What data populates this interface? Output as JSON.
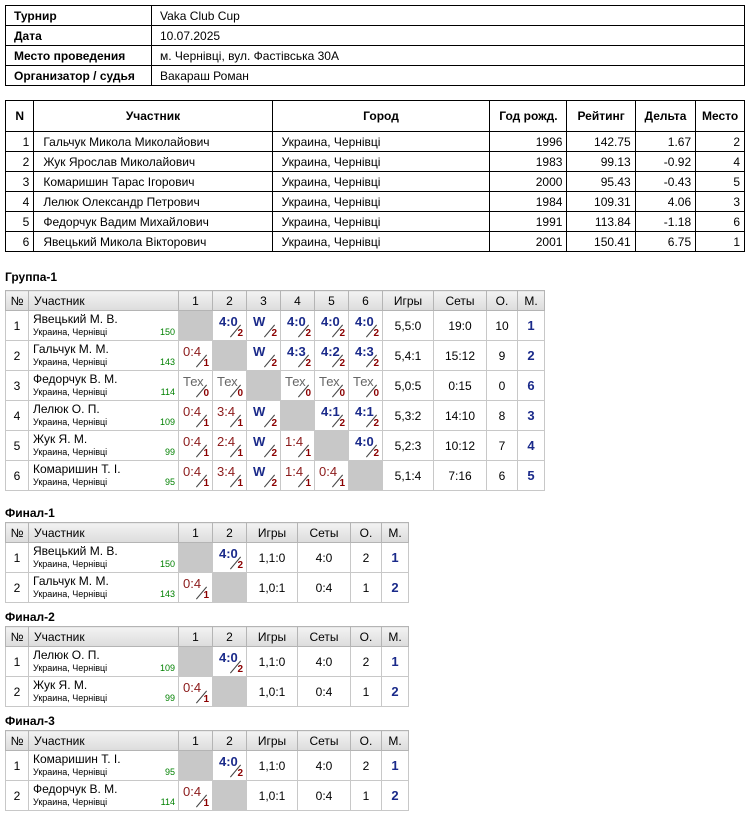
{
  "info": [
    {
      "k": "Турнир",
      "v": "Vaka Club Cup"
    },
    {
      "k": "Дата",
      "v": "10.07.2025"
    },
    {
      "k": "Место проведения",
      "v": "м. Чернівці, вул. Фастівська 30А"
    },
    {
      "k": "Организатор / судья",
      "v": "Вакараш Роман"
    }
  ],
  "participants": {
    "headers": [
      "N",
      "Участник",
      "Город",
      "Год рожд.",
      "Рейтинг",
      "Дельта",
      "Место"
    ],
    "rows": [
      [
        "1",
        "Гальчук Микола Миколайович",
        "Украина, Чернівці",
        "1996",
        "142.75",
        "1.67",
        "2"
      ],
      [
        "2",
        "Жук Ярослав Миколайович",
        "Украина, Чернівці",
        "1983",
        "99.13",
        "-0.92",
        "4"
      ],
      [
        "3",
        "Комаришин Тарас Ігорович",
        "Украина, Чернівці",
        "2000",
        "95.43",
        "-0.43",
        "5"
      ],
      [
        "4",
        "Лелюк Олександр Петрович",
        "Украина, Чернівці",
        "1984",
        "109.31",
        "4.06",
        "3"
      ],
      [
        "5",
        "Федорчук Вадим Михайлович",
        "Украина, Чернівці",
        "1991",
        "113.84",
        "-1.18",
        "6"
      ],
      [
        "6",
        "Явецький Микола Вікторович",
        "Украина, Чернівці",
        "2001",
        "150.41",
        "6.75",
        "1"
      ]
    ]
  },
  "groups": [
    {
      "title": "Группа-1",
      "headers": {
        "no": "№",
        "name": "Участник",
        "cols": [
          "1",
          "2",
          "3",
          "4",
          "5",
          "6"
        ],
        "games": "Игры",
        "sets": "Сеты",
        "o": "О.",
        "m": "М."
      },
      "rows": [
        {
          "no": "1",
          "name": "Явецький М. В.",
          "city": "Украина, Чернівці",
          "rating": "150",
          "res": [
            null,
            {
              "s": "4:0",
              "p": "2",
              "t": "win"
            },
            {
              "s": "W",
              "p": "2",
              "t": "win"
            },
            {
              "s": "4:0",
              "p": "2",
              "t": "win"
            },
            {
              "s": "4:0",
              "p": "2",
              "t": "win"
            },
            {
              "s": "4:0",
              "p": "2",
              "t": "win"
            }
          ],
          "games": "5,5:0",
          "sets": "19:0",
          "o": "10",
          "m": "1"
        },
        {
          "no": "2",
          "name": "Гальчук М. М.",
          "city": "Украина, Чернівці",
          "rating": "143",
          "res": [
            {
              "s": "0:4",
              "p": "1",
              "t": "loss"
            },
            null,
            {
              "s": "W",
              "p": "2",
              "t": "win"
            },
            {
              "s": "4:3",
              "p": "2",
              "t": "win"
            },
            {
              "s": "4:2",
              "p": "2",
              "t": "win"
            },
            {
              "s": "4:3",
              "p": "2",
              "t": "win"
            }
          ],
          "games": "5,4:1",
          "sets": "15:12",
          "o": "9",
          "m": "2"
        },
        {
          "no": "3",
          "name": "Федорчук В. М.",
          "city": "Украина, Чернівці",
          "rating": "114",
          "res": [
            {
              "s": "Тех",
              "p": "0",
              "t": "tex"
            },
            {
              "s": "Тех",
              "p": "0",
              "t": "tex"
            },
            null,
            {
              "s": "Тех",
              "p": "0",
              "t": "tex"
            },
            {
              "s": "Тех",
              "p": "0",
              "t": "tex"
            },
            {
              "s": "Тех",
              "p": "0",
              "t": "tex"
            }
          ],
          "games": "5,0:5",
          "sets": "0:15",
          "o": "0",
          "m": "6"
        },
        {
          "no": "4",
          "name": "Лелюк О. П.",
          "city": "Украина, Чернівці",
          "rating": "109",
          "res": [
            {
              "s": "0:4",
              "p": "1",
              "t": "loss"
            },
            {
              "s": "3:4",
              "p": "1",
              "t": "loss"
            },
            {
              "s": "W",
              "p": "2",
              "t": "win"
            },
            null,
            {
              "s": "4:1",
              "p": "2",
              "t": "win"
            },
            {
              "s": "4:1",
              "p": "2",
              "t": "win"
            }
          ],
          "games": "5,3:2",
          "sets": "14:10",
          "o": "8",
          "m": "3"
        },
        {
          "no": "5",
          "name": "Жук Я. М.",
          "city": "Украина, Чернівці",
          "rating": "99",
          "res": [
            {
              "s": "0:4",
              "p": "1",
              "t": "loss"
            },
            {
              "s": "2:4",
              "p": "1",
              "t": "loss"
            },
            {
              "s": "W",
              "p": "2",
              "t": "win"
            },
            {
              "s": "1:4",
              "p": "1",
              "t": "loss"
            },
            null,
            {
              "s": "4:0",
              "p": "2",
              "t": "win"
            }
          ],
          "games": "5,2:3",
          "sets": "10:12",
          "o": "7",
          "m": "4"
        },
        {
          "no": "6",
          "name": "Комаришин Т. І.",
          "city": "Украина, Чернівці",
          "rating": "95",
          "res": [
            {
              "s": "0:4",
              "p": "1",
              "t": "loss"
            },
            {
              "s": "3:4",
              "p": "1",
              "t": "loss"
            },
            {
              "s": "W",
              "p": "2",
              "t": "win"
            },
            {
              "s": "1:4",
              "p": "1",
              "t": "loss"
            },
            {
              "s": "0:4",
              "p": "1",
              "t": "loss"
            },
            null
          ],
          "games": "5,1:4",
          "sets": "7:16",
          "o": "6",
          "m": "5"
        }
      ]
    },
    {
      "title": "Финал-1",
      "headers": {
        "no": "№",
        "name": "Участник",
        "cols": [
          "1",
          "2"
        ],
        "games": "Игры",
        "sets": "Сеты",
        "o": "О.",
        "m": "М."
      },
      "rows": [
        {
          "no": "1",
          "name": "Явецький М. В.",
          "city": "Украина, Чернівці",
          "rating": "150",
          "res": [
            null,
            {
              "s": "4:0",
              "p": "2",
              "t": "win"
            }
          ],
          "games": "1,1:0",
          "sets": "4:0",
          "o": "2",
          "m": "1"
        },
        {
          "no": "2",
          "name": "Гальчук М. М.",
          "city": "Украина, Чернівці",
          "rating": "143",
          "res": [
            {
              "s": "0:4",
              "p": "1",
              "t": "loss"
            },
            null
          ],
          "games": "1,0:1",
          "sets": "0:4",
          "o": "1",
          "m": "2"
        }
      ]
    },
    {
      "title": "Финал-2",
      "headers": {
        "no": "№",
        "name": "Участник",
        "cols": [
          "1",
          "2"
        ],
        "games": "Игры",
        "sets": "Сеты",
        "o": "О.",
        "m": "М."
      },
      "rows": [
        {
          "no": "1",
          "name": "Лелюк О. П.",
          "city": "Украина, Чернівці",
          "rating": "109",
          "res": [
            null,
            {
              "s": "4:0",
              "p": "2",
              "t": "win"
            }
          ],
          "games": "1,1:0",
          "sets": "4:0",
          "o": "2",
          "m": "1"
        },
        {
          "no": "2",
          "name": "Жук Я. М.",
          "city": "Украина, Чернівці",
          "rating": "99",
          "res": [
            {
              "s": "0:4",
              "p": "1",
              "t": "loss"
            },
            null
          ],
          "games": "1,0:1",
          "sets": "0:4",
          "o": "1",
          "m": "2"
        }
      ]
    },
    {
      "title": "Финал-3",
      "headers": {
        "no": "№",
        "name": "Участник",
        "cols": [
          "1",
          "2"
        ],
        "games": "Игры",
        "sets": "Сеты",
        "o": "О.",
        "m": "М."
      },
      "rows": [
        {
          "no": "1",
          "name": "Комаришин Т. І.",
          "city": "Украина, Чернівці",
          "rating": "95",
          "res": [
            null,
            {
              "s": "4:0",
              "p": "2",
              "t": "win"
            }
          ],
          "games": "1,1:0",
          "sets": "4:0",
          "o": "2",
          "m": "1"
        },
        {
          "no": "2",
          "name": "Федорчук В. М.",
          "city": "Украина, Чернівці",
          "rating": "114",
          "res": [
            {
              "s": "0:4",
              "p": "1",
              "t": "loss"
            },
            null
          ],
          "games": "1,0:1",
          "sets": "0:4",
          "o": "1",
          "m": "2"
        }
      ]
    }
  ]
}
